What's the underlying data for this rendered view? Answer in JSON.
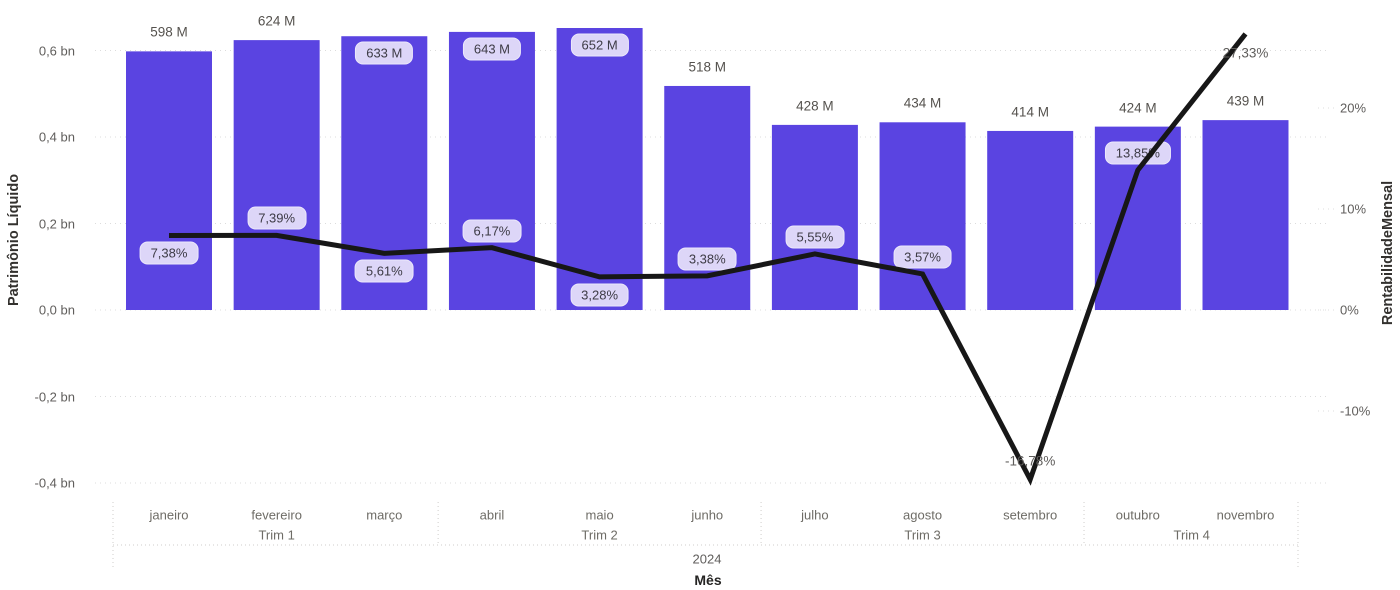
{
  "chart_data": {
    "type": "combo-bar-line",
    "x_axis": {
      "title": "Mês",
      "year": "2024",
      "categories": [
        "janeiro",
        "fevereiro",
        "março",
        "abril",
        "maio",
        "junho",
        "julho",
        "agosto",
        "setembro",
        "outubro",
        "novembro"
      ],
      "groups": [
        {
          "label": "Trim 1",
          "start": 0,
          "end": 2
        },
        {
          "label": "Trim 2",
          "start": 3,
          "end": 5
        },
        {
          "label": "Trim 3",
          "start": 6,
          "end": 8
        },
        {
          "label": "Trim 4",
          "start": 9,
          "end": 10
        }
      ]
    },
    "left_axis": {
      "title": "Patrimônio Líquido",
      "ticks": [
        {
          "label": "0,6 bn",
          "value": 0.6
        },
        {
          "label": "0,4 bn",
          "value": 0.4
        },
        {
          "label": "0,2 bn",
          "value": 0.2
        },
        {
          "label": "0,0 bn",
          "value": 0.0
        },
        {
          "label": "-0,2 bn",
          "value": -0.2
        },
        {
          "label": "-0,4 bn",
          "value": -0.4
        }
      ],
      "range_bn": [
        -0.4,
        0.6
      ]
    },
    "right_axis": {
      "title": "RentabilidadeMensal",
      "ticks": [
        {
          "label": "20%",
          "value": 20
        },
        {
          "label": "10%",
          "value": 10
        },
        {
          "label": "0%",
          "value": 0
        },
        {
          "label": "-10%",
          "value": -10
        }
      ]
    },
    "bar_series": {
      "name": "Patrimônio Líquido",
      "unit": "M",
      "values_m": [
        598,
        624,
        633,
        643,
        652,
        518,
        428,
        434,
        414,
        424,
        439
      ],
      "labels": [
        "598 M",
        "624 M",
        "633 M",
        "643 M",
        "652 M",
        "518 M",
        "428 M",
        "434 M",
        "414 M",
        "424 M",
        "439 M"
      ],
      "label_styles": [
        "outside",
        "outside",
        "pill",
        "pill",
        "pill",
        "outside",
        "outside",
        "outside",
        "outside",
        "outside",
        "outside"
      ]
    },
    "line_series": {
      "name": "RentabilidadeMensal",
      "unit": "%",
      "values_pct": [
        7.38,
        7.39,
        5.61,
        6.17,
        3.28,
        3.38,
        5.55,
        3.57,
        -16.78,
        13.85,
        27.33
      ],
      "labels": [
        "7,38%",
        "7,39%",
        "5,61%",
        "6,17%",
        "3,28%",
        "3,38%",
        "5,55%",
        "3,57%",
        "-16,78%",
        "13,85%",
        "27,33%"
      ],
      "label_styles": [
        "pill",
        "pill",
        "pill",
        "pill",
        "pill",
        "pill",
        "pill",
        "pill",
        "plain",
        "pill",
        "plain"
      ],
      "label_positions": [
        "below",
        "above",
        "below",
        "above",
        "below",
        "above",
        "above",
        "above",
        "above",
        "above",
        "below"
      ]
    },
    "legend_position": "none",
    "grid": "dotted-horizontal"
  },
  "colors": {
    "bar": "#5A44E1",
    "line": "#171717",
    "pill_bg": "#DDD6F8",
    "pill_text": "#3D3B45",
    "axis_text": "#605E5C",
    "grid": "#DCDCDC",
    "separator": "#CFCDCB",
    "title_text": "#33312E"
  }
}
